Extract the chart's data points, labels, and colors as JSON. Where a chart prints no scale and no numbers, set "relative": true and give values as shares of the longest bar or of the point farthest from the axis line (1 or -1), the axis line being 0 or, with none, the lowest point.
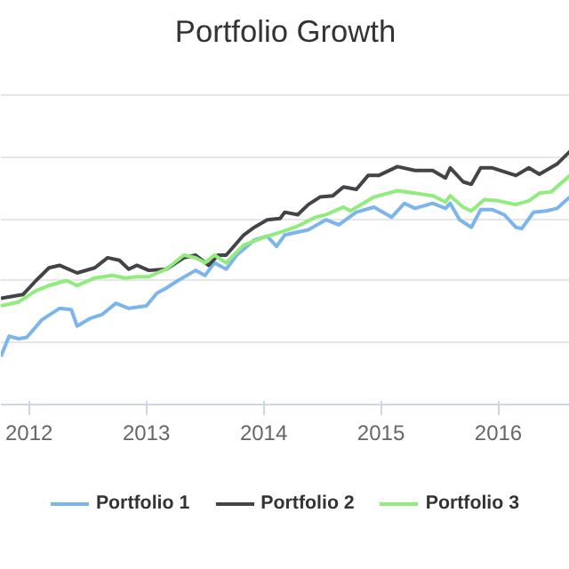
{
  "chart_data": {
    "type": "line",
    "title": "Portfolio Growth",
    "relative": true,
    "grid": "y",
    "legend": "bottom",
    "marker": "none",
    "line_style": "solid",
    "xlim": [
      2011.76,
      2016.61
    ],
    "xticks": [
      2012,
      2013,
      2014,
      2015,
      2016
    ],
    "series": [
      {
        "name": "Portfolio 1",
        "color": "#7cb5ec",
        "x": [
          2011.76,
          2011.83,
          2011.91,
          2011.98,
          2012.11,
          2012.26,
          2012.36,
          2012.41,
          2012.52,
          2012.62,
          2012.74,
          2012.85,
          2013.0,
          2013.09,
          2013.17,
          2013.27,
          2013.42,
          2013.5,
          2013.58,
          2013.68,
          2013.77,
          2013.92,
          2014.03,
          2014.11,
          2014.18,
          2014.38,
          2014.53,
          2014.64,
          2014.79,
          2014.94,
          2015.09,
          2015.2,
          2015.29,
          2015.44,
          2015.55,
          2015.59,
          2015.67,
          2015.77,
          2015.85,
          2015.95,
          2016.05,
          2016.15,
          2016.2,
          2016.3,
          2016.41,
          2016.5,
          2016.61
        ],
        "values": [
          0.19,
          0.27,
          0.26,
          0.265,
          0.335,
          0.38,
          0.375,
          0.31,
          0.34,
          0.355,
          0.4,
          0.38,
          0.39,
          0.44,
          0.46,
          0.49,
          0.53,
          0.51,
          0.56,
          0.535,
          0.59,
          0.65,
          0.665,
          0.625,
          0.67,
          0.69,
          0.73,
          0.71,
          0.76,
          0.78,
          0.74,
          0.795,
          0.775,
          0.795,
          0.775,
          0.795,
          0.73,
          0.7,
          0.77,
          0.77,
          0.75,
          0.7,
          0.695,
          0.76,
          0.765,
          0.775,
          0.82
        ]
      },
      {
        "name": "Portfolio 2",
        "color": "#434348",
        "x": [
          2011.76,
          2011.95,
          2012.06,
          2012.17,
          2012.26,
          2012.41,
          2012.56,
          2012.67,
          2012.77,
          2012.85,
          2012.92,
          2013.02,
          2013.17,
          2013.32,
          2013.42,
          2013.53,
          2013.61,
          2013.68,
          2013.83,
          2013.92,
          2014.03,
          2014.14,
          2014.18,
          2014.29,
          2014.38,
          2014.48,
          2014.59,
          2014.68,
          2014.79,
          2014.89,
          2014.98,
          2015.14,
          2015.29,
          2015.44,
          2015.55,
          2015.59,
          2015.7,
          2015.77,
          2015.85,
          2015.95,
          2016.15,
          2016.26,
          2016.35,
          2016.5,
          2016.61
        ],
        "values": [
          0.42,
          0.435,
          0.49,
          0.54,
          0.55,
          0.52,
          0.54,
          0.58,
          0.57,
          0.535,
          0.55,
          0.53,
          0.535,
          0.58,
          0.59,
          0.55,
          0.59,
          0.59,
          0.67,
          0.7,
          0.73,
          0.735,
          0.76,
          0.75,
          0.79,
          0.82,
          0.825,
          0.86,
          0.85,
          0.905,
          0.905,
          0.94,
          0.925,
          0.925,
          0.895,
          0.935,
          0.88,
          0.87,
          0.935,
          0.935,
          0.905,
          0.935,
          0.91,
          0.95,
          1.0
        ]
      },
      {
        "name": "Portfolio 3",
        "color": "#90ed7d",
        "x": [
          2011.76,
          2011.91,
          2012.06,
          2012.17,
          2012.32,
          2012.41,
          2012.56,
          2012.71,
          2012.82,
          2012.92,
          2013.02,
          2013.17,
          2013.32,
          2013.42,
          2013.5,
          2013.58,
          2013.68,
          2013.83,
          2014.03,
          2014.14,
          2014.29,
          2014.44,
          2014.53,
          2014.68,
          2014.74,
          2014.94,
          2015.14,
          2015.29,
          2015.44,
          2015.55,
          2015.59,
          2015.7,
          2015.77,
          2015.88,
          2016.0,
          2016.15,
          2016.26,
          2016.35,
          2016.45,
          2016.61
        ],
        "values": [
          0.39,
          0.405,
          0.45,
          0.47,
          0.49,
          0.47,
          0.5,
          0.51,
          0.5,
          0.505,
          0.505,
          0.535,
          0.59,
          0.58,
          0.56,
          0.59,
          0.56,
          0.63,
          0.665,
          0.68,
          0.705,
          0.74,
          0.75,
          0.78,
          0.765,
          0.82,
          0.845,
          0.835,
          0.825,
          0.8,
          0.825,
          0.78,
          0.765,
          0.81,
          0.805,
          0.79,
          0.805,
          0.835,
          0.84,
          0.905
        ]
      }
    ]
  }
}
